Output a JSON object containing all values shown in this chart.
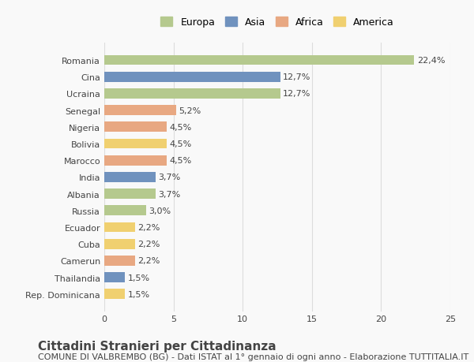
{
  "categories": [
    "Rep. Dominicana",
    "Thailandia",
    "Camerun",
    "Cuba",
    "Ecuador",
    "Russia",
    "Albania",
    "India",
    "Marocco",
    "Bolivia",
    "Nigeria",
    "Senegal",
    "Ucraina",
    "Cina",
    "Romania"
  ],
  "values": [
    1.5,
    1.5,
    2.2,
    2.2,
    2.2,
    3.0,
    3.7,
    3.7,
    4.5,
    4.5,
    4.5,
    5.2,
    12.7,
    12.7,
    22.4
  ],
  "labels": [
    "1,5%",
    "1,5%",
    "2,2%",
    "2,2%",
    "2,2%",
    "3,0%",
    "3,7%",
    "3,7%",
    "4,5%",
    "4,5%",
    "4,5%",
    "5,2%",
    "12,7%",
    "12,7%",
    "22,4%"
  ],
  "continents": [
    "America",
    "Asia",
    "Africa",
    "America",
    "America",
    "Europa",
    "Europa",
    "Asia",
    "Africa",
    "America",
    "Africa",
    "Africa",
    "Europa",
    "Asia",
    "Europa"
  ],
  "continent_colors": {
    "Europa": "#b5c98e",
    "Asia": "#7092be",
    "Africa": "#e8a882",
    "America": "#f0d070"
  },
  "legend_order": [
    "Europa",
    "Asia",
    "Africa",
    "America"
  ],
  "xlim": [
    0,
    25
  ],
  "xticks": [
    0,
    5,
    10,
    15,
    20,
    25
  ],
  "title": "Cittadini Stranieri per Cittadinanza",
  "subtitle": "COMUNE DI VALBREMBO (BG) - Dati ISTAT al 1° gennaio di ogni anno - Elaborazione TUTTITALIA.IT",
  "bg_color": "#f9f9f9",
  "bar_height": 0.6,
  "grid_color": "#dddddd",
  "text_color": "#444444",
  "title_fontsize": 11,
  "subtitle_fontsize": 8,
  "tick_fontsize": 8,
  "label_fontsize": 8,
  "legend_fontsize": 9
}
